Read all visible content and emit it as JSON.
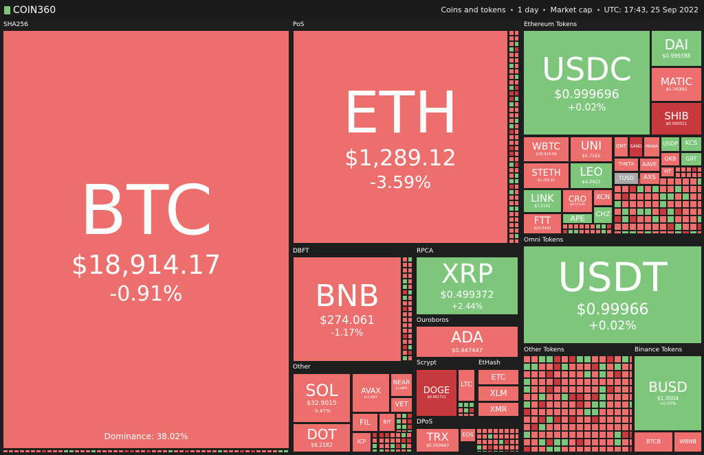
{
  "header": {
    "logo": "COIN360",
    "nav": [
      "Coins and tokens",
      "1 day",
      "Market cap",
      "UTC: 17:43, 25 Sep 2022"
    ]
  },
  "groups": [
    "SHA256",
    "PoS",
    "Ethereum Tokens",
    "DBFT",
    "RPCA",
    "Ouroboros",
    "Omni Tokens",
    "Other",
    "Scrypt",
    "EtHash",
    "DPoS",
    "Other Tokens",
    "Binance Tokens"
  ],
  "tiles": [
    {
      "symbol": "BTC",
      "price": "$18,914.17",
      "change": "-0.91%",
      "color": "red",
      "dominance": "Dominance: 38.02%"
    },
    {
      "symbol": "ETH",
      "price": "$1,289.12",
      "change": "-3.59%",
      "color": "red"
    },
    {
      "symbol": "USDC",
      "price": "$0.999696",
      "change": "+0.02%",
      "color": "green"
    },
    {
      "symbol": "DAI",
      "price": "$0.999388",
      "color": "green"
    },
    {
      "symbol": "MATIC",
      "price": "$0.745693",
      "color": "red"
    },
    {
      "symbol": "SHIB",
      "price": "$0.000011",
      "color": "darkred"
    },
    {
      "symbol": "WBTC",
      "price": "$18,914.08",
      "color": "red"
    },
    {
      "symbol": "UNI",
      "price": "$5.7162",
      "color": "red"
    },
    {
      "symbol": "STETH",
      "price": "$1,254.22",
      "color": "red"
    },
    {
      "symbol": "LEO",
      "price": "$4.2923",
      "color": "green"
    },
    {
      "symbol": "LINK",
      "price": "$7.5141",
      "color": "green"
    },
    {
      "symbol": "CRO",
      "price": "$0.11540",
      "color": "red"
    },
    {
      "symbol": "XCN",
      "color": "red"
    },
    {
      "symbol": "FTT",
      "price": "$23.5443",
      "color": "red"
    },
    {
      "symbol": "APE",
      "color": "green"
    },
    {
      "symbol": "CHZ",
      "color": "green"
    },
    {
      "symbol": "QNT",
      "color": "red"
    },
    {
      "symbol": "SAND",
      "color": "darkred"
    },
    {
      "symbol": "MANA",
      "color": "red"
    },
    {
      "symbol": "USDP",
      "color": "green"
    },
    {
      "symbol": "KCS",
      "color": "green"
    },
    {
      "symbol": "OKB",
      "color": "red"
    },
    {
      "symbol": "GRT",
      "color": "green"
    },
    {
      "symbol": "THETA",
      "color": "red"
    },
    {
      "symbol": "AAVE",
      "color": "red"
    },
    {
      "symbol": "HT",
      "color": "red"
    },
    {
      "symbol": "TUSD",
      "color": "gray"
    },
    {
      "symbol": "AXS",
      "color": "red"
    },
    {
      "symbol": "BNB",
      "price": "$274.061",
      "change": "-1.17%",
      "color": "red"
    },
    {
      "symbol": "XRP",
      "price": "$0.499372",
      "change": "+2.44%",
      "color": "green"
    },
    {
      "symbol": "ADA",
      "price": "$0.447447",
      "color": "red"
    },
    {
      "symbol": "USDT",
      "price": "$0.99966",
      "change": "+0.02%",
      "color": "green"
    },
    {
      "symbol": "SOL",
      "price": "$32.9015",
      "change": "-3.47%",
      "color": "red"
    },
    {
      "symbol": "DOT",
      "price": "$6.2182",
      "color": "red"
    },
    {
      "symbol": "AVAX",
      "price": "$17.4827",
      "color": "red"
    },
    {
      "symbol": "NEAR",
      "price": "$3.6809",
      "color": "red"
    },
    {
      "symbol": "VET",
      "color": "red"
    },
    {
      "symbol": "FIL",
      "color": "red"
    },
    {
      "symbol": "BIT",
      "color": "red"
    },
    {
      "symbol": "ICP",
      "color": "red"
    },
    {
      "symbol": "DOGE",
      "price": "$0.061722",
      "color": "darkred"
    },
    {
      "symbol": "LTC",
      "color": "red"
    },
    {
      "symbol": "ETC",
      "color": "red"
    },
    {
      "symbol": "XLM",
      "color": "red"
    },
    {
      "symbol": "XMR",
      "color": "red"
    },
    {
      "symbol": "TRX",
      "price": "$0.059693",
      "color": "red"
    },
    {
      "symbol": "EOS",
      "color": "red"
    },
    {
      "symbol": "BUSD",
      "price": "$1.0004",
      "change": "+0.07%",
      "color": "green"
    },
    {
      "symbol": "BTCB",
      "color": "red"
    },
    {
      "symbol": "WBNB",
      "color": "red"
    }
  ]
}
